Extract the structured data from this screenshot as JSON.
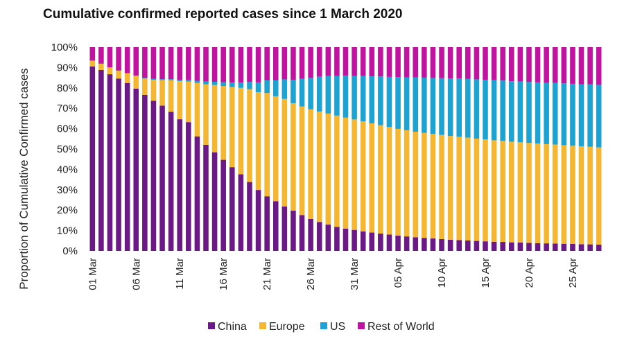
{
  "chart_data": {
    "type": "bar",
    "stacked": true,
    "title": "Cumulative confirmed reported cases since 1 March 2020",
    "xlabel": "",
    "ylabel": "Proportion of Cumulative Confirmed cases",
    "ylim": [
      0,
      100
    ],
    "y_ticks": [
      "0%",
      "10%",
      "20%",
      "30%",
      "40%",
      "50%",
      "60%",
      "70%",
      "80%",
      "90%",
      "100%"
    ],
    "x_tick_labels": [
      "01 Mar",
      "06 Mar",
      "11 Mar",
      "16 Mar",
      "21 Mar",
      "26 Mar",
      "31 Mar",
      "05 Apr",
      "10 Apr",
      "15 Apr",
      "20 Apr",
      "25 Apr"
    ],
    "x_tick_every": 5,
    "bar_count": 59,
    "legend_position": "bottom",
    "series": [
      {
        "name": "China",
        "color": "#6b1a85",
        "values": [
          90.5,
          88.8,
          86.7,
          84.6,
          82.4,
          79.6,
          76.6,
          73.7,
          71.3,
          68.3,
          64.6,
          63.2,
          56.2,
          52.1,
          48.4,
          44.7,
          41.1,
          37.6,
          33.8,
          29.9,
          26.8,
          24.4,
          21.8,
          19.8,
          17.6,
          15.7,
          14.2,
          12.9,
          11.8,
          10.9,
          10.3,
          9.6,
          9.0,
          8.5,
          8.0,
          7.5,
          7.1,
          6.7,
          6.4,
          6.1,
          5.8,
          5.5,
          5.3,
          5.1,
          4.9,
          4.7,
          4.5,
          4.4,
          4.2,
          4.1,
          3.9,
          3.8,
          3.7,
          3.6,
          3.5,
          3.4,
          3.3,
          3.2,
          3.1
        ]
      },
      {
        "name": "Europe",
        "color": "#f5b731",
        "values": [
          2.8,
          3.0,
          3.3,
          3.8,
          4.7,
          6.2,
          8.0,
          10.3,
          12.5,
          15.4,
          18.7,
          19.9,
          26.2,
          29.7,
          33.0,
          36.2,
          39.3,
          42.4,
          45.6,
          48.0,
          50.7,
          51.5,
          52.8,
          52.7,
          53.3,
          53.8,
          54.2,
          54.5,
          54.6,
          54.5,
          54.2,
          54.0,
          53.6,
          53.2,
          52.8,
          52.4,
          52.1,
          51.8,
          51.5,
          51.3,
          51.1,
          50.9,
          50.7,
          50.5,
          50.2,
          50.0,
          49.8,
          49.6,
          49.4,
          49.2,
          49.1,
          48.9,
          48.7,
          48.6,
          48.4,
          48.2,
          48.0,
          47.9,
          47.7
        ]
      },
      {
        "name": "US",
        "color": "#1da3d2",
        "values": [
          0.1,
          0.1,
          0.1,
          0.2,
          0.2,
          0.3,
          0.3,
          0.4,
          0.5,
          0.6,
          0.7,
          0.8,
          1.1,
          1.3,
          1.6,
          1.9,
          2.2,
          2.6,
          3.5,
          4.8,
          6.2,
          7.8,
          9.6,
          11.5,
          13.6,
          15.4,
          17.1,
          18.4,
          19.5,
          20.6,
          21.4,
          22.3,
          23.1,
          23.9,
          24.6,
          25.4,
          26.0,
          26.6,
          27.1,
          27.5,
          27.9,
          28.3,
          28.6,
          28.8,
          29.1,
          29.3,
          29.5,
          29.6,
          29.7,
          29.8,
          29.9,
          30.0,
          30.1,
          30.2,
          30.3,
          30.4,
          30.5,
          30.6,
          30.7
        ]
      },
      {
        "name": "Rest of World",
        "color": "#c0139f",
        "values": [
          6.6,
          8.1,
          9.9,
          11.4,
          12.7,
          13.9,
          15.1,
          15.6,
          15.7,
          15.7,
          16.0,
          16.1,
          16.5,
          16.9,
          17.0,
          17.2,
          17.4,
          17.4,
          17.1,
          17.3,
          16.3,
          16.3,
          15.8,
          16.0,
          15.5,
          15.1,
          14.5,
          14.2,
          14.1,
          14.0,
          14.1,
          14.1,
          14.3,
          14.4,
          14.6,
          14.7,
          14.8,
          14.9,
          15.0,
          15.1,
          15.2,
          15.3,
          15.4,
          15.6,
          15.8,
          16.0,
          16.2,
          16.4,
          16.7,
          16.9,
          17.1,
          17.3,
          17.5,
          17.6,
          17.8,
          18.0,
          18.2,
          18.3,
          18.5
        ]
      }
    ]
  }
}
